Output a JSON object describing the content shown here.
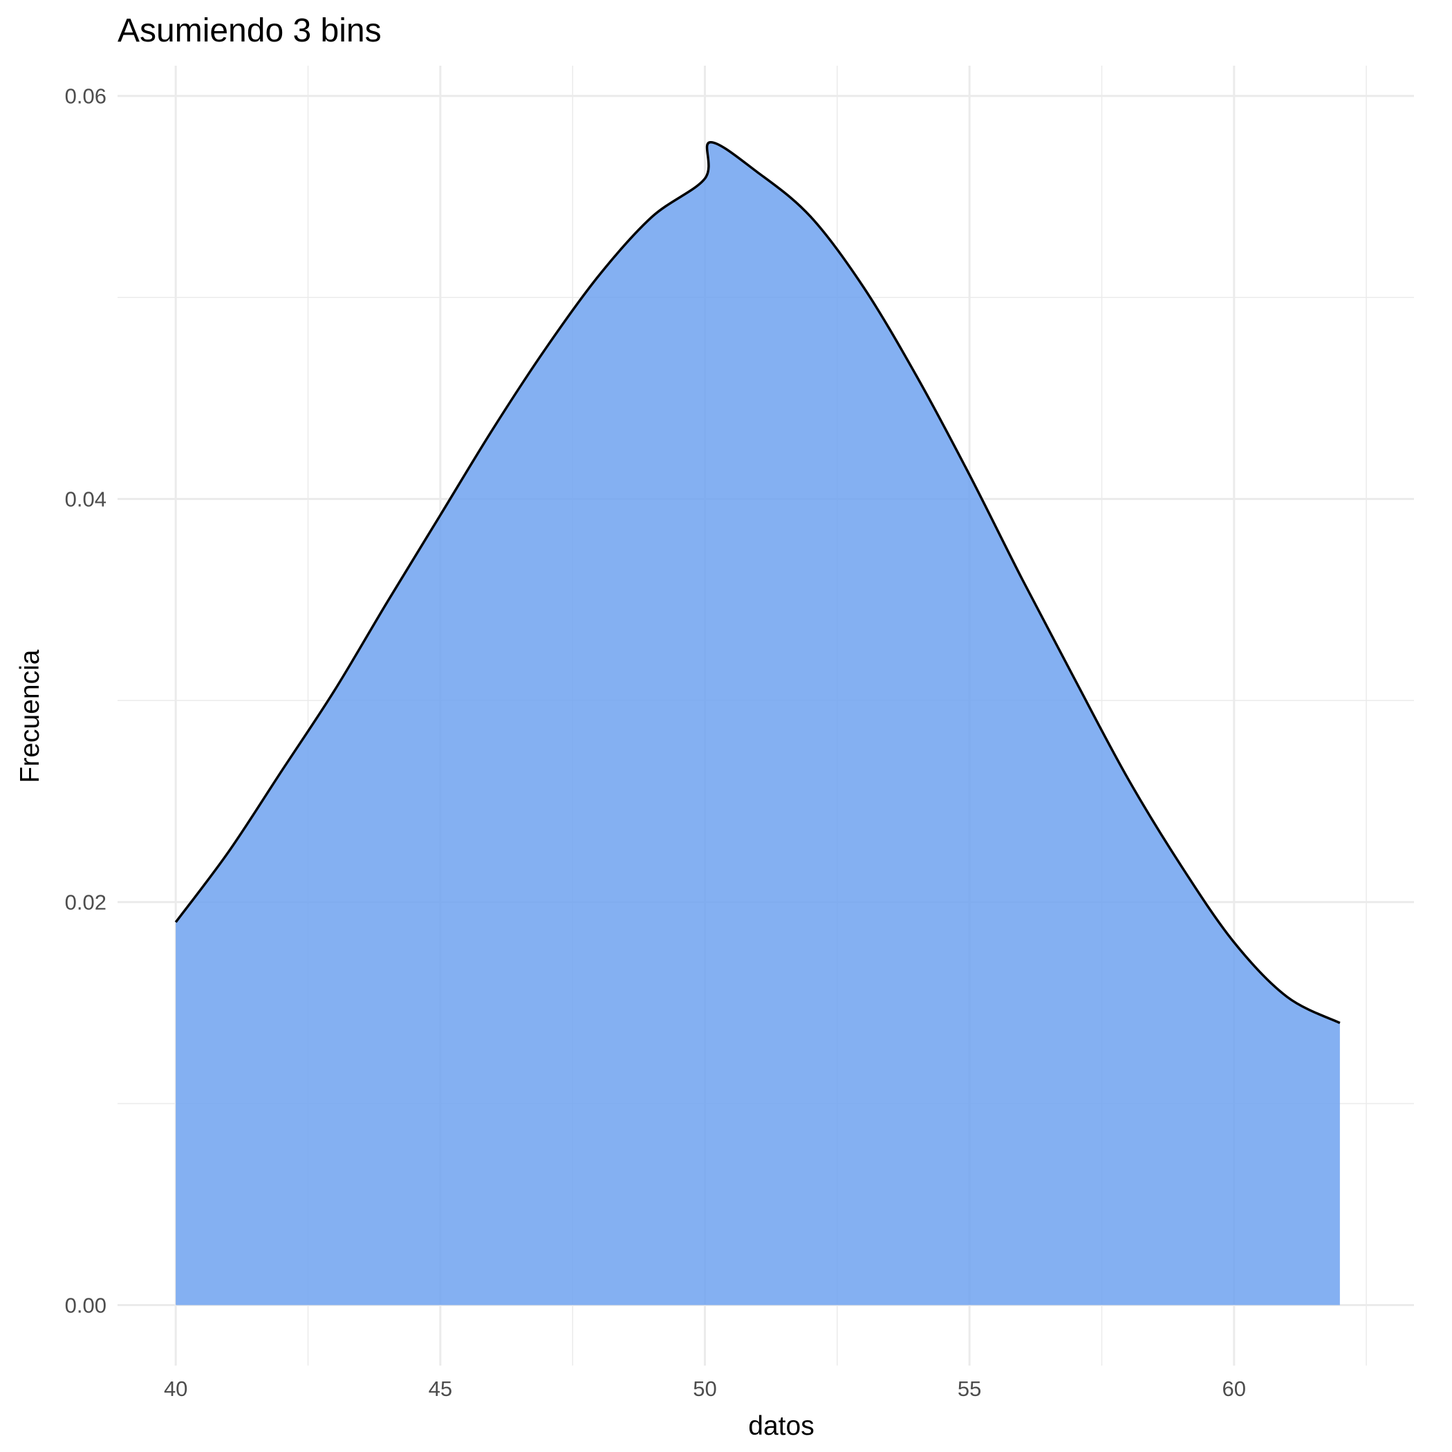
{
  "chart_data": {
    "type": "area",
    "title": "Asumiendo 3 bins",
    "xlabel": "datos",
    "ylabel": "Frecuencia",
    "xlim": [
      38.9,
      63.4
    ],
    "ylim": [
      -0.003,
      0.0615
    ],
    "x_ticks": [
      40,
      45,
      50,
      55,
      60
    ],
    "x_tick_labels": [
      "40",
      "45",
      "50",
      "55",
      "60"
    ],
    "y_ticks": [
      0,
      0.02,
      0.04,
      0.06
    ],
    "y_tick_labels": [
      "0.00",
      "0.02",
      "0.04",
      "0.06"
    ],
    "x_minor_ticks": [
      42.5,
      47.5,
      52.5,
      57.5,
      62.5
    ],
    "y_minor_ticks": [
      0.01,
      0.03,
      0.05
    ],
    "grid": true,
    "legend": "none",
    "fill_color": "#6fa2f0",
    "fill_opacity": 0.85,
    "line_color": "#000000",
    "series": [
      {
        "x": [
          40,
          41,
          42,
          43,
          44,
          45,
          46,
          47,
          48,
          49,
          50,
          50.1,
          51,
          52,
          53,
          54,
          55,
          56,
          57,
          58,
          59,
          60,
          61,
          62
        ],
        "y": [
          0.019,
          0.0225,
          0.0265,
          0.0305,
          0.0349,
          0.0392,
          0.0435,
          0.0475,
          0.0511,
          0.054,
          0.0559,
          0.0577,
          0.0562,
          0.054,
          0.0505,
          0.0461,
          0.0412,
          0.036,
          0.031,
          0.0261,
          0.0218,
          0.018,
          0.0153,
          0.014
        ]
      }
    ]
  }
}
